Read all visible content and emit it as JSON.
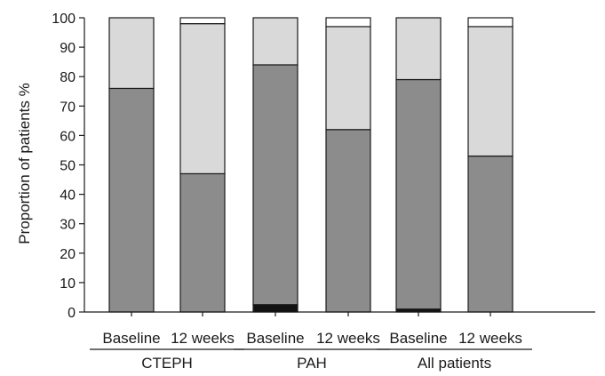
{
  "chart_data": {
    "type": "bar",
    "stacked": true,
    "title": "",
    "xlabel": "",
    "ylabel": "Proportion of patients %",
    "ylim": [
      0,
      100
    ],
    "yticks": [
      0,
      10,
      20,
      30,
      40,
      50,
      60,
      70,
      80,
      90,
      100
    ],
    "grid": false,
    "legend": "none",
    "categories": [
      "Baseline",
      "12 weeks",
      "Baseline",
      "12 weeks",
      "Baseline",
      "12 weeks"
    ],
    "groups": [
      {
        "label": "CTEPH",
        "members": [
          0,
          1
        ]
      },
      {
        "label": "PAH",
        "members": [
          2,
          3
        ]
      },
      {
        "label": "All patients",
        "members": [
          4,
          5
        ]
      }
    ],
    "series": [
      {
        "color": "#111111",
        "values": [
          0,
          0,
          2.5,
          0,
          1,
          0
        ]
      },
      {
        "color": "#8c8c8c",
        "values": [
          76,
          47,
          81.5,
          62,
          78,
          53
        ]
      },
      {
        "color": "#d9d9d9",
        "values": [
          24,
          51,
          16,
          35,
          21,
          44
        ]
      },
      {
        "color": "#ffffff",
        "values": [
          0,
          2,
          0,
          3,
          0,
          3
        ]
      }
    ]
  }
}
